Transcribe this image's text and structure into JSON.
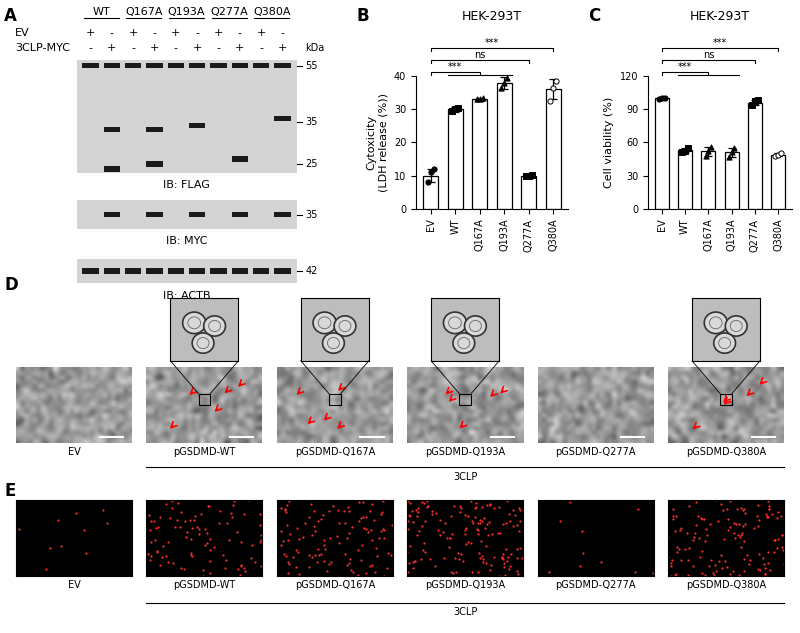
{
  "panel_labels": [
    "A",
    "B",
    "C",
    "D",
    "E"
  ],
  "blot": {
    "constructs": [
      "WT",
      "Q167A",
      "Q193A",
      "Q277A",
      "Q380A"
    ],
    "rows": [
      {
        "label": "EV",
        "signs": [
          "+",
          "-",
          "+",
          "-",
          "+",
          "-",
          "+",
          "-",
          "+",
          "-"
        ]
      },
      {
        "label": "3CLP-MYC",
        "signs": [
          "-",
          "+",
          "-",
          "+",
          "-",
          "+",
          "-",
          "+",
          "-",
          "+"
        ]
      }
    ],
    "unit": "kDa",
    "blots": [
      {
        "label": "IB: FLAG",
        "markers": [
          55,
          35,
          25
        ],
        "lanes": [
          [
            55
          ],
          [
            55,
            33,
            24
          ],
          [
            55
          ],
          [
            55,
            33,
            25
          ],
          [
            55
          ],
          [
            55,
            34
          ],
          [
            55
          ],
          [
            55,
            26
          ],
          [
            55
          ],
          [
            55,
            36
          ]
        ]
      },
      {
        "label": "IB: MYC",
        "markers": [
          35
        ],
        "lanes": [
          [],
          [
            35
          ],
          [],
          [
            35
          ],
          [],
          [
            35
          ],
          [],
          [
            35
          ],
          [],
          [
            35
          ]
        ]
      },
      {
        "label": "IB: ACTB",
        "markers": [
          42
        ],
        "lanes": [
          [
            42
          ],
          [
            42
          ],
          [
            42
          ],
          [
            42
          ],
          [
            42
          ],
          [
            42
          ],
          [
            42
          ],
          [
            42
          ],
          [
            42
          ],
          [
            42
          ]
        ]
      }
    ]
  },
  "chart_data": [
    {
      "type": "bar",
      "title": "HEK-293T",
      "categories": [
        "EV",
        "WT",
        "Q167A",
        "Q193A",
        "Q277A",
        "Q380A"
      ],
      "values": [
        10,
        30,
        33,
        38,
        10,
        36
      ],
      "errors": [
        2,
        0.7,
        0.4,
        1.8,
        0.4,
        3.0
      ],
      "points": [
        [
          8,
          11,
          12
        ],
        [
          29.5,
          30,
          30.5
        ],
        [
          33,
          33,
          33.3
        ],
        [
          36.5,
          38,
          39.5
        ],
        [
          9.8,
          10,
          10.2
        ],
        [
          32.5,
          36.5,
          38.5
        ]
      ],
      "color": "#ffffff",
      "ylabel": "Cytoxicity\n(LDH release (%))",
      "ylim": [
        0,
        40
      ],
      "yticks": [
        0,
        10,
        20,
        30,
        40
      ],
      "annotations": [
        {
          "from": "EV",
          "to": [
            "WT",
            "Q167A",
            "Q193A"
          ],
          "label": "***"
        },
        {
          "from": "EV",
          "to": [
            "Q277A"
          ],
          "label": "ns"
        },
        {
          "from": "EV",
          "to": [
            "Q380A"
          ],
          "label": "***"
        }
      ]
    },
    {
      "type": "bar",
      "title": "HEK-293T",
      "categories": [
        "EV",
        "WT",
        "Q167A",
        "Q193A",
        "Q277A",
        "Q380A"
      ],
      "values": [
        100,
        53,
        52,
        51,
        96,
        49
      ],
      "errors": [
        0.5,
        2,
        4,
        4,
        2,
        1.5
      ],
      "points": [
        [
          99.5,
          100,
          100.5
        ],
        [
          51,
          52,
          55
        ],
        [
          48,
          52,
          56
        ],
        [
          47,
          51,
          55
        ],
        [
          94,
          97,
          98
        ],
        [
          48,
          49,
          50.5
        ]
      ],
      "color": "#ffffff",
      "ylabel": "Cell viability (%)",
      "ylim": [
        0,
        120
      ],
      "yticks": [
        0,
        30,
        60,
        90,
        120
      ],
      "annotations": [
        {
          "from": "EV",
          "to": [
            "WT",
            "Q167A",
            "Q193A"
          ],
          "label": "***"
        },
        {
          "from": "EV",
          "to": [
            "Q277A"
          ],
          "label": "ns"
        },
        {
          "from": "EV",
          "to": [
            "Q380A"
          ],
          "label": "***"
        }
      ]
    }
  ],
  "micrographs": {
    "labels": [
      "EV",
      "pGSDMD-WT",
      "pGSDMD-Q167A",
      "pGSDMD-Q193A",
      "pGSDMD-Q277A",
      "pGSDMD-Q380A"
    ],
    "with_inset": [
      false,
      true,
      true,
      true,
      false,
      true
    ],
    "treatment": "3CLP"
  },
  "fluorescence": {
    "labels": [
      "EV",
      "pGSDMD-WT",
      "pGSDMD-Q167A",
      "pGSDMD-Q193A",
      "pGSDMD-Q277A",
      "pGSDMD-Q380A"
    ],
    "treatment": "3CLP"
  }
}
